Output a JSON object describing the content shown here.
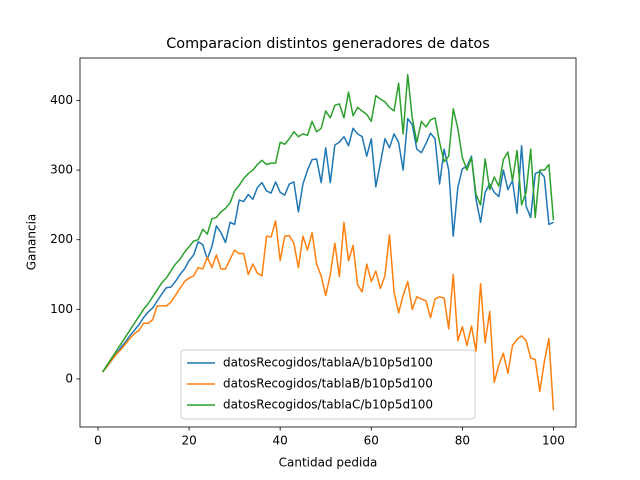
{
  "chart_data": {
    "type": "line",
    "title": "Comparacion distintos generadores de datos",
    "xlabel": "Cantidad pedida",
    "ylabel": "Ganancia",
    "x": [
      1,
      2,
      3,
      4,
      5,
      6,
      7,
      8,
      9,
      10,
      11,
      12,
      13,
      14,
      15,
      16,
      17,
      18,
      19,
      20,
      21,
      22,
      23,
      24,
      25,
      26,
      27,
      28,
      29,
      30,
      31,
      32,
      33,
      34,
      35,
      36,
      37,
      38,
      39,
      40,
      41,
      42,
      43,
      44,
      45,
      46,
      47,
      48,
      49,
      50,
      51,
      52,
      53,
      54,
      55,
      56,
      57,
      58,
      59,
      60,
      61,
      62,
      63,
      64,
      65,
      66,
      67,
      68,
      69,
      70,
      71,
      72,
      73,
      74,
      75,
      76,
      77,
      78,
      79,
      80,
      81,
      82,
      83,
      84,
      85,
      86,
      87,
      88,
      89,
      90,
      91,
      92,
      93,
      94,
      95,
      96,
      97,
      98,
      99,
      100
    ],
    "series": [
      {
        "name": "datosRecogidos/tablaA/b10p5d100",
        "color": "#1f77b4",
        "values": [
          10,
          18,
          27,
          36,
          45,
          53,
          62,
          70,
          78,
          88,
          96,
          102,
          112,
          122,
          131,
          132,
          140,
          150,
          158,
          170,
          178,
          197,
          193,
          172,
          190,
          220,
          210,
          196,
          225,
          222,
          257,
          255,
          265,
          258,
          275,
          282,
          270,
          267,
          283,
          268,
          264,
          280,
          283,
          240,
          280,
          300,
          315,
          316,
          282,
          332,
          282,
          336,
          340,
          348,
          335,
          360,
          352,
          348,
          320,
          345,
          276,
          310,
          345,
          332,
          352,
          340,
          300,
          374,
          365,
          330,
          325,
          338,
          353,
          345,
          280,
          330,
          300,
          205,
          275,
          302,
          305,
          320,
          258,
          225,
          268,
          280,
          268,
          262,
          300,
          272,
          285,
          238,
          335,
          248,
          232,
          295,
          298,
          290,
          222,
          225
        ]
      },
      {
        "name": "datosRecogidos/tablaB/b10p5d100",
        "color": "#ff7f0e",
        "values": [
          10,
          18,
          27,
          35,
          42,
          50,
          58,
          65,
          70,
          80,
          80,
          85,
          105,
          105,
          105,
          110,
          120,
          130,
          140,
          145,
          148,
          160,
          158,
          175,
          160,
          178,
          158,
          158,
          172,
          185,
          180,
          180,
          150,
          165,
          152,
          148,
          205,
          204,
          227,
          170,
          205,
          206,
          195,
          160,
          205,
          185,
          210,
          165,
          148,
          120,
          150,
          195,
          147,
          225,
          170,
          192,
          135,
          125,
          165,
          140,
          155,
          130,
          148,
          207,
          125,
          95,
          120,
          140,
          100,
          118,
          115,
          112,
          88,
          115,
          118,
          116,
          72,
          150,
          55,
          75,
          48,
          76,
          40,
          137,
          52,
          97,
          -5,
          20,
          37,
          8,
          48,
          57,
          62,
          55,
          30,
          28,
          -18,
          25,
          58,
          -45
        ]
      },
      {
        "name": "datosRecogidos/tablaC/b10p5d100",
        "color": "#2ca02c",
        "values": [
          10,
          20,
          30,
          40,
          50,
          60,
          70,
          80,
          90,
          100,
          108,
          118,
          128,
          138,
          145,
          155,
          165,
          172,
          182,
          190,
          198,
          200,
          215,
          208,
          230,
          232,
          240,
          245,
          253,
          270,
          278,
          288,
          295,
          300,
          308,
          314,
          308,
          310,
          310,
          340,
          337,
          345,
          355,
          348,
          352,
          350,
          370,
          355,
          360,
          385,
          375,
          393,
          395,
          375,
          412,
          378,
          390,
          385,
          380,
          370,
          407,
          402,
          398,
          390,
          385,
          425,
          352,
          437,
          375,
          340,
          370,
          362,
          372,
          375,
          340,
          312,
          320,
          388,
          360,
          318,
          300,
          318,
          265,
          250,
          316,
          272,
          290,
          277,
          315,
          326,
          285,
          328,
          250,
          268,
          330,
          232,
          300,
          300,
          308,
          228
        ]
      }
    ],
    "xlim": [
      -3.95,
      104.95
    ],
    "ylim": [
      -69,
      461
    ],
    "xticks": [
      0,
      20,
      40,
      60,
      80,
      100
    ],
    "yticks": [
      0,
      100,
      200,
      300,
      400
    ],
    "legend": "lower center"
  }
}
